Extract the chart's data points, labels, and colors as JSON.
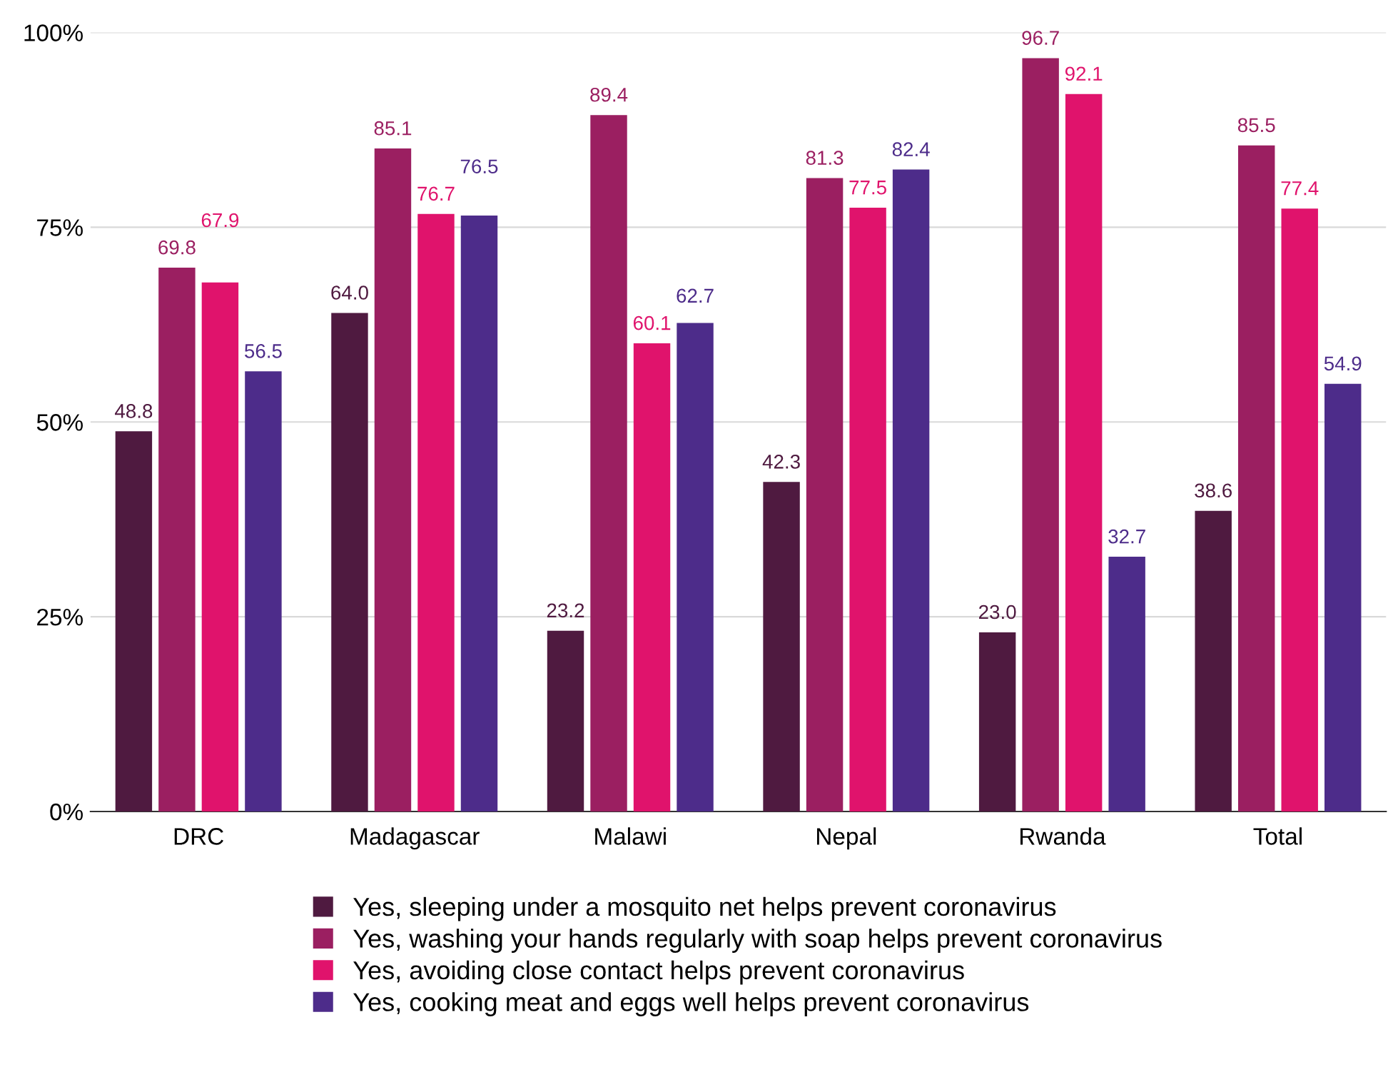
{
  "chart_data": {
    "type": "bar",
    "categories": [
      "DRC",
      "Madagascar",
      "Malawi",
      "Nepal",
      "Rwanda",
      "Total"
    ],
    "series": [
      {
        "name": "Yes, sleeping under a mosquito net helps prevent coronavirus",
        "color": "#4f1a40",
        "values": [
          48.8,
          64.0,
          23.2,
          42.3,
          23.0,
          38.6
        ],
        "value_labels": [
          "48.8",
          "64.0",
          "23.2",
          "42.3",
          "23.0",
          "38.6"
        ]
      },
      {
        "name": "Yes, washing your hands regularly with soap helps prevent coronavirus",
        "color": "#9b1f61",
        "values": [
          69.8,
          85.1,
          89.4,
          81.3,
          96.7,
          85.5
        ],
        "value_labels": [
          "69.8",
          "85.1",
          "89.4",
          "81.3",
          "96.7",
          "85.5"
        ]
      },
      {
        "name": "Yes, avoiding close contact helps prevent coronavirus",
        "color": "#e0136c",
        "values": [
          67.9,
          76.7,
          60.1,
          77.5,
          92.1,
          77.4
        ],
        "value_labels": [
          "67.9",
          "76.7",
          "60.1",
          "77.5",
          "92.1",
          "77.4"
        ]
      },
      {
        "name": "Yes, cooking meat and eggs well helps prevent coronavirus",
        "color": "#4d2c8a",
        "values": [
          56.5,
          76.5,
          62.7,
          82.4,
          32.7,
          54.9
        ],
        "value_labels": [
          "56.5",
          "76.5",
          "62.7",
          "82.4",
          "32.7",
          "54.9"
        ]
      }
    ],
    "ylim": [
      0,
      100
    ],
    "yticks": [
      {
        "value": 0,
        "label": "0%"
      },
      {
        "value": 25,
        "label": "25%"
      },
      {
        "value": 50,
        "label": "50%"
      },
      {
        "value": 75,
        "label": "75%"
      },
      {
        "value": 100,
        "label": "100%"
      }
    ],
    "grid": "y",
    "legend": "bottom"
  }
}
